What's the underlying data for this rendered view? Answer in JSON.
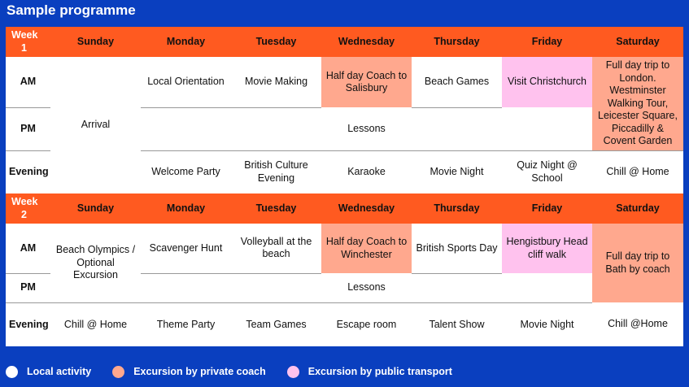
{
  "title": "Sample programme",
  "colors": {
    "background": "#0a3fbf",
    "header": "#ff5a20",
    "local": "#ffffff",
    "coach": "#ffa88e",
    "public": "#ffc2ee"
  },
  "days": [
    "Sunday",
    "Monday",
    "Tuesday",
    "Wednesday",
    "Thursday",
    "Friday",
    "Saturday"
  ],
  "rows": {
    "am": "AM",
    "pm": "PM",
    "evening": "Evening"
  },
  "week1": {
    "label": "Week",
    "number": "1",
    "sunday": "Arrival",
    "am": {
      "monday": "Local Orientation",
      "tuesday": "Movie Making",
      "wednesday": "Half day Coach to Salisbury",
      "thursday": "Beach Games",
      "friday": "Visit Christchurch"
    },
    "saturday": "Full day trip to London. Westminster Walking Tour, Leicester Square, Piccadilly & Covent Garden",
    "pm_lessons": "Lessons",
    "evening": {
      "monday": "Welcome Party",
      "tuesday": "British Culture Evening",
      "wednesday": "Karaoke",
      "thursday": "Movie Night",
      "friday": "Quiz Night @ School",
      "saturday": "Chill @ Home"
    }
  },
  "week2": {
    "label": "Week",
    "number": "2",
    "sunday": "Beach Olympics / Optional Excursion",
    "am": {
      "monday": "Scavenger Hunt",
      "tuesday": "Volleyball at the beach",
      "wednesday": "Half day Coach to Winchester",
      "thursday": "British Sports Day",
      "friday": "Hengistbury Head cliff walk"
    },
    "saturday": "Full day trip to Bath by coach",
    "pm_lessons": "Lessons",
    "evening": {
      "sunday": "Chill @ Home",
      "monday": "Theme Party",
      "tuesday": "Team Games",
      "wednesday": "Escape room",
      "thursday": "Talent Show",
      "friday": "Movie Night",
      "saturday": "Chill @Home"
    }
  },
  "legend": [
    {
      "label": "Local activity",
      "color": "#ffffff"
    },
    {
      "label": "Excursion by private coach",
      "color": "#ffa88e"
    },
    {
      "label": "Excursion by public transport",
      "color": "#ffc2ee"
    }
  ]
}
